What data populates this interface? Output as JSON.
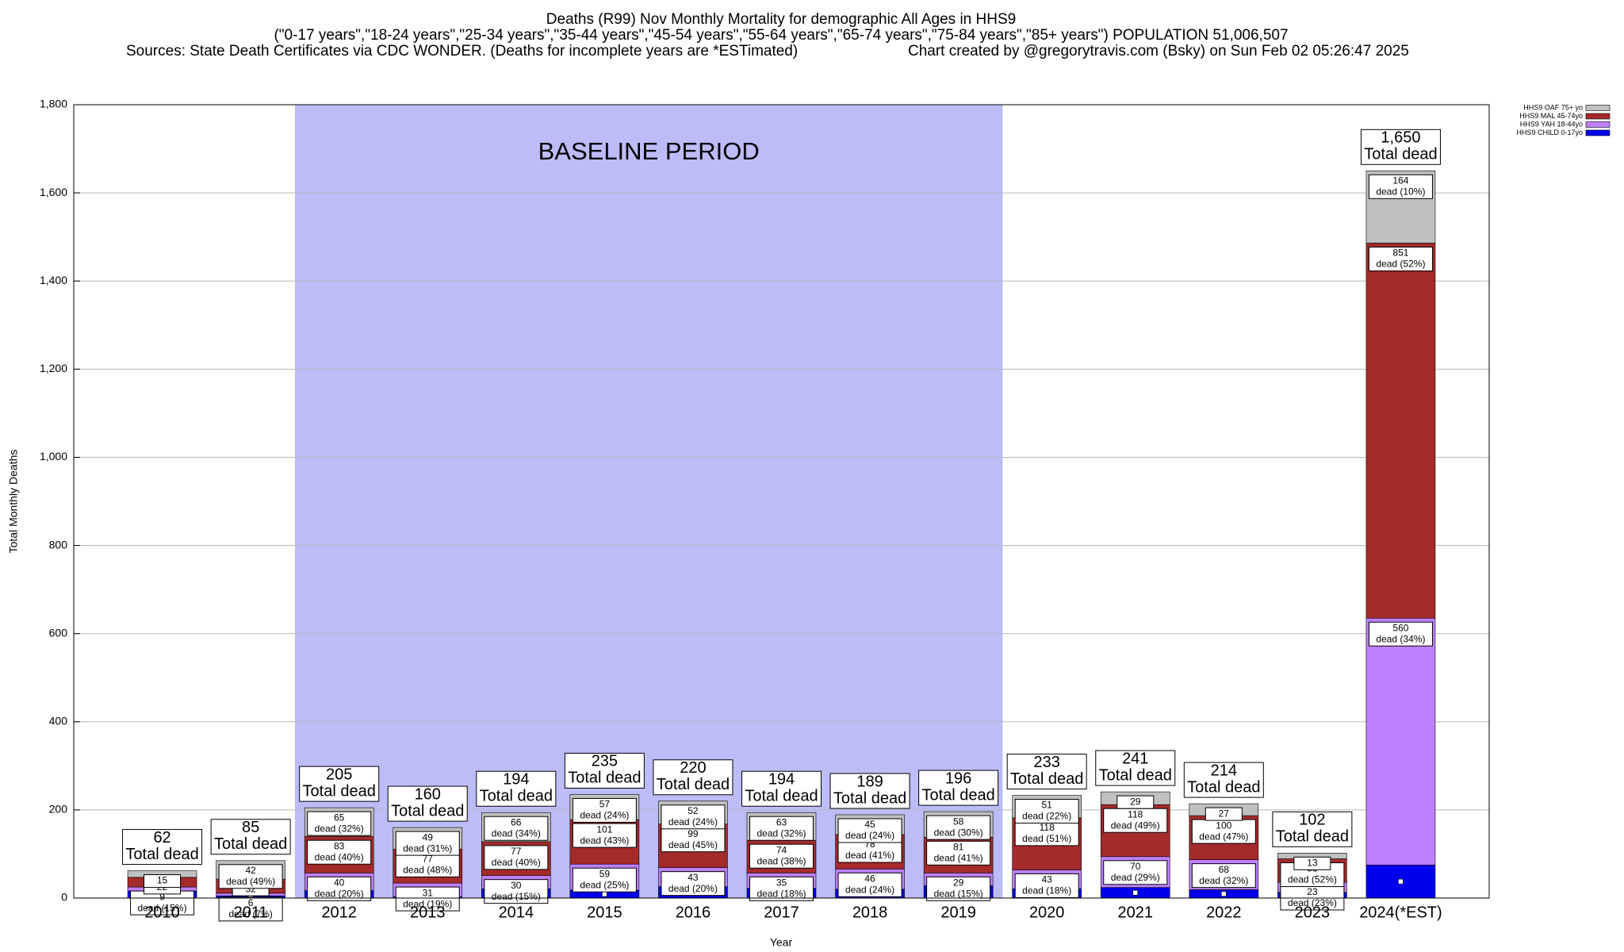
{
  "chart_data": {
    "type": "stacked_bar",
    "title": "Deaths (R99) Nov Monthly Mortality for demographic All Ages in HHS9",
    "subtitle": "(\"0-17 years\",\"18-24 years\",\"25-34 years\",\"35-44 years\",\"45-54 years\",\"55-64 years\",\"65-74 years\",\"75-84 years\",\"85+ years\") POPULATION 51,006,507",
    "source": "Sources: State Death Certificates via CDC WONDER. (Deaths for incomplete years are *ESTimated)",
    "credit": "Chart created by @gregorytravis.com (Bsky) on Sun Feb 02 05:26:47 2025",
    "x_label": "Year",
    "y_label": "Total Monthly Deaths",
    "categories": [
      "2010",
      "2011",
      "2012",
      "2013",
      "2014",
      "2015",
      "2016",
      "2017",
      "2018",
      "2019",
      "2020",
      "2021",
      "2022",
      "2023",
      "2024(*EST)"
    ],
    "series": [
      {
        "name": "HHS9 CHILD 0-17yo",
        "color": "#0000ee",
        "values": [
          16,
          5,
          17,
          3,
          21,
          18,
          26,
          22,
          20,
          28,
          21,
          24,
          19,
          13,
          75
        ]
      },
      {
        "name": "HHS9 YAH 18-44yo",
        "color": "#bf80ff",
        "values": [
          9,
          6,
          40,
          31,
          30,
          59,
          43,
          35,
          46,
          29,
          43,
          70,
          68,
          23,
          560
        ],
        "percent_labels": [
          "dead (15%)",
          "dead (7%)",
          "dead (20%)",
          "dead (19%)",
          "dead (15%)",
          "dead (25%)",
          "dead (20%)",
          "dead (18%)",
          "dead (24%)",
          "dead (15%)",
          "dead (18%)",
          "dead (29%)",
          "dead (32%)",
          "dead (23%)",
          "dead (34%)"
        ]
      },
      {
        "name": "HHS9 MAL 45-74yo",
        "color": "#a52a2a",
        "values": [
          22,
          32,
          83,
          77,
          77,
          101,
          99,
          74,
          78,
          81,
          118,
          118,
          100,
          53,
          851
        ],
        "percent_labels": [
          null,
          null,
          "dead (40%)",
          "dead (48%)",
          "dead (40%)",
          "dead (43%)",
          "dead (45%)",
          "dead (38%)",
          "dead (41%)",
          "dead (41%)",
          "dead (51%)",
          "dead (49%)",
          "dead (47%)",
          "dead (52%)",
          "dead (52%)"
        ]
      },
      {
        "name": "HHS9 OAF 75+ yo",
        "color": "#c0c0c0",
        "values": [
          15,
          42,
          65,
          49,
          66,
          57,
          52,
          63,
          45,
          58,
          51,
          29,
          27,
          13,
          164
        ],
        "percent_labels": [
          null,
          "dead (49%)",
          "dead (32%)",
          "dead (31%)",
          "dead (34%)",
          "dead (24%)",
          "dead (24%)",
          "dead (32%)",
          "dead (24%)",
          "dead (30%)",
          "dead (22%)",
          null,
          null,
          null,
          "dead (10%)"
        ]
      }
    ],
    "totals": [
      62,
      85,
      205,
      160,
      194,
      235,
      220,
      194,
      189,
      196,
      233,
      241,
      214,
      102,
      1650
    ],
    "total_value_labels": [
      "62",
      "85",
      "205",
      "160",
      "194",
      "235",
      "220",
      "194",
      "189",
      "196",
      "233",
      "241",
      "214",
      "102",
      "1,650"
    ],
    "total_caption": "Total dead",
    "baseline": {
      "label": "BASELINE PERIOD",
      "start": "2012",
      "end": "2019",
      "color": "#bcbcf8"
    },
    "ylim": [
      0,
      1800
    ],
    "yticks": [
      0,
      200,
      400,
      600,
      800,
      {
        "value": 1000,
        "label": "1,000"
      },
      {
        "value": 1200,
        "label": "1,200"
      },
      {
        "value": 1400,
        "label": "1,400"
      },
      {
        "value": 1600,
        "label": "1,600"
      },
      {
        "value": 1800,
        "label": "1,800"
      }
    ],
    "grid": true,
    "legend": "top-right"
  }
}
